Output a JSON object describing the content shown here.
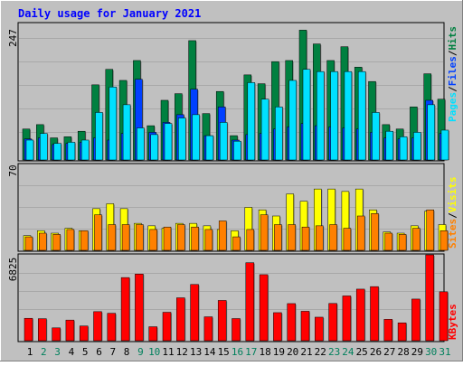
{
  "title": "Daily usage for January 2021",
  "colors": {
    "background": "#c0c0c0",
    "title": "#0000ff",
    "hits": "#008040",
    "files": "#0040ff",
    "pages": "#00e0ff",
    "visits": "#ffff00",
    "sites": "#ff8000",
    "kbytes": "#ff0000",
    "weekend_label": "#00805c",
    "weekday_label": "#000000"
  },
  "chart_data": [
    {
      "type": "bar",
      "panel": "top",
      "ymax_label": "247",
      "ylim": [
        0,
        247
      ],
      "legend": [
        "Pages",
        "/",
        "Files",
        "/",
        "Hits"
      ],
      "categories": [
        "1",
        "2",
        "3",
        "4",
        "5",
        "6",
        "7",
        "8",
        "9",
        "10",
        "11",
        "12",
        "13",
        "14",
        "15",
        "16",
        "17",
        "18",
        "19",
        "20",
        "21",
        "22",
        "23",
        "24",
        "25",
        "26",
        "27",
        "28",
        "29",
        "30",
        "31"
      ],
      "series": [
        {
          "name": "Hits",
          "values": [
            56,
            64,
            40,
            42,
            52,
            136,
            164,
            144,
            180,
            62,
            108,
            120,
            216,
            84,
            124,
            44,
            154,
            138,
            178,
            180,
            235,
            210,
            180,
            205,
            168,
            142,
            64,
            56,
            96,
            156,
            110
          ]
        },
        {
          "name": "Files",
          "values": [
            38,
            40,
            28,
            30,
            32,
            40,
            36,
            48,
            146,
            50,
            68,
            82,
            128,
            44,
            96,
            36,
            46,
            48,
            56,
            60,
            66,
            62,
            60,
            58,
            56,
            50,
            40,
            38,
            40,
            108,
            48
          ]
        },
        {
          "name": "Pages",
          "values": [
            36,
            48,
            30,
            32,
            36,
            86,
            132,
            100,
            58,
            46,
            66,
            76,
            82,
            44,
            68,
            34,
            140,
            110,
            96,
            144,
            164,
            160,
            160,
            160,
            160,
            86,
            52,
            42,
            50,
            100,
            54
          ]
        }
      ]
    },
    {
      "type": "bar",
      "panel": "middle",
      "ymax_label": "70",
      "ylim": [
        0,
        70
      ],
      "legend": [
        "Sites",
        "/",
        "Visits"
      ],
      "categories": [
        "1",
        "2",
        "3",
        "4",
        "5",
        "6",
        "7",
        "8",
        "9",
        "10",
        "11",
        "12",
        "13",
        "14",
        "15",
        "16",
        "17",
        "18",
        "19",
        "20",
        "21",
        "22",
        "23",
        "24",
        "25",
        "26",
        "27",
        "28",
        "29",
        "30",
        "31"
      ],
      "series": [
        {
          "name": "Visits",
          "values": [
            12,
            16,
            14,
            18,
            16,
            34,
            38,
            34,
            22,
            20,
            18,
            22,
            22,
            20,
            17,
            16,
            35,
            33,
            28,
            46,
            40,
            50,
            50,
            48,
            50,
            33,
            15,
            14,
            20,
            32,
            21
          ]
        },
        {
          "name": "Sites",
          "values": [
            11,
            14,
            13,
            17,
            16,
            29,
            21,
            21,
            21,
            17,
            19,
            21,
            19,
            17,
            24,
            11,
            17,
            29,
            21,
            21,
            19,
            20,
            21,
            18,
            28,
            30,
            14,
            13,
            18,
            33,
            16
          ]
        }
      ]
    },
    {
      "type": "bar",
      "panel": "bottom",
      "ymax_label": "6825",
      "ylim": [
        0,
        6825
      ],
      "legend": [
        "KBytes"
      ],
      "categories": [
        "1",
        "2",
        "3",
        "4",
        "5",
        "6",
        "7",
        "8",
        "9",
        "10",
        "11",
        "12",
        "13",
        "14",
        "15",
        "16",
        "17",
        "18",
        "19",
        "20",
        "21",
        "22",
        "23",
        "24",
        "25",
        "26",
        "27",
        "28",
        "29",
        "30",
        "31"
      ],
      "series": [
        {
          "name": "KBytes",
          "values": [
            1780,
            1750,
            1020,
            1640,
            1170,
            2310,
            2180,
            5020,
            5300,
            1110,
            2260,
            3410,
            4470,
            1900,
            3200,
            1760,
            6200,
            5250,
            2230,
            2950,
            2340,
            1870,
            2960,
            3560,
            4100,
            4300,
            1700,
            1420,
            3310,
            6825,
            3890
          ]
        }
      ]
    }
  ]
}
